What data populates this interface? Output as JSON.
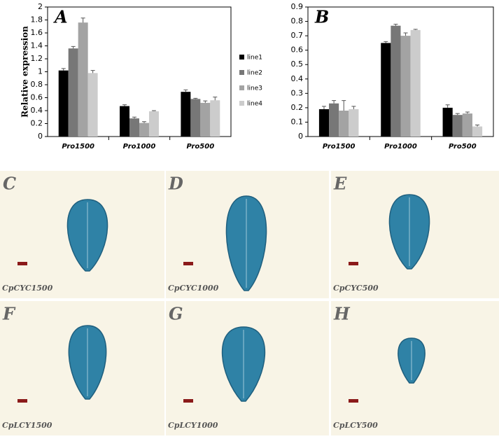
{
  "chart_data": [
    {
      "type": "bar",
      "title": "A",
      "y_label": "Relative expression",
      "categories": [
        "Pro1500",
        "Pro1000",
        "Pro500"
      ],
      "series": [
        {
          "name": "line1",
          "color": "#000000",
          "values": [
            1.02,
            0.47,
            0.69
          ],
          "errors": [
            0.03,
            0.02,
            0.03
          ]
        },
        {
          "name": "line2",
          "color": "#777777",
          "values": [
            1.36,
            0.28,
            0.58
          ],
          "errors": [
            0.03,
            0.02,
            0.01
          ]
        },
        {
          "name": "line3",
          "color": "#a3a3a3",
          "values": [
            1.76,
            0.21,
            0.52
          ],
          "errors": [
            0.07,
            0.02,
            0.03
          ]
        },
        {
          "name": "line4",
          "color": "#cccccc",
          "values": [
            0.98,
            0.39,
            0.56
          ],
          "errors": [
            0.04,
            0.01,
            0.05
          ]
        }
      ],
      "ylim": [
        0,
        2
      ],
      "yticks": [
        0,
        0.2,
        0.4,
        0.6,
        0.8,
        1,
        1.2,
        1.4,
        1.6,
        1.8,
        2
      ],
      "legend": "right"
    },
    {
      "type": "bar",
      "title": "B",
      "categories": [
        "Pro1500",
        "Pro1000",
        "Pro500"
      ],
      "series": [
        {
          "color": "#000000",
          "values": [
            0.19,
            0.65,
            0.2
          ],
          "errors": [
            0.02,
            0.01,
            0.02
          ]
        },
        {
          "color": "#777777",
          "values": [
            0.23,
            0.77,
            0.15
          ],
          "errors": [
            0.02,
            0.01,
            0.01
          ]
        },
        {
          "color": "#a3a3a3",
          "values": [
            0.18,
            0.7,
            0.16
          ],
          "errors": [
            0.07,
            0.02,
            0.01
          ]
        },
        {
          "color": "#cccccc",
          "values": [
            0.19,
            0.74,
            0.07
          ],
          "errors": [
            0.02,
            0.005,
            0.01
          ]
        }
      ],
      "ylim": [
        0,
        0.9
      ],
      "yticks": [
        0,
        0.1,
        0.2,
        0.3,
        0.4,
        0.5,
        0.6,
        0.7,
        0.8,
        0.9
      ]
    }
  ],
  "panels": [
    {
      "letter": "C",
      "caption": "CpCYC1500"
    },
    {
      "letter": "D",
      "caption": "CpCYC1000"
    },
    {
      "letter": "E",
      "caption": "CpCYC500"
    },
    {
      "letter": "F",
      "caption": "CpLCY1500"
    },
    {
      "letter": "G",
      "caption": "CpLCY1000"
    },
    {
      "letter": "H",
      "caption": "CpLCY500"
    }
  ]
}
